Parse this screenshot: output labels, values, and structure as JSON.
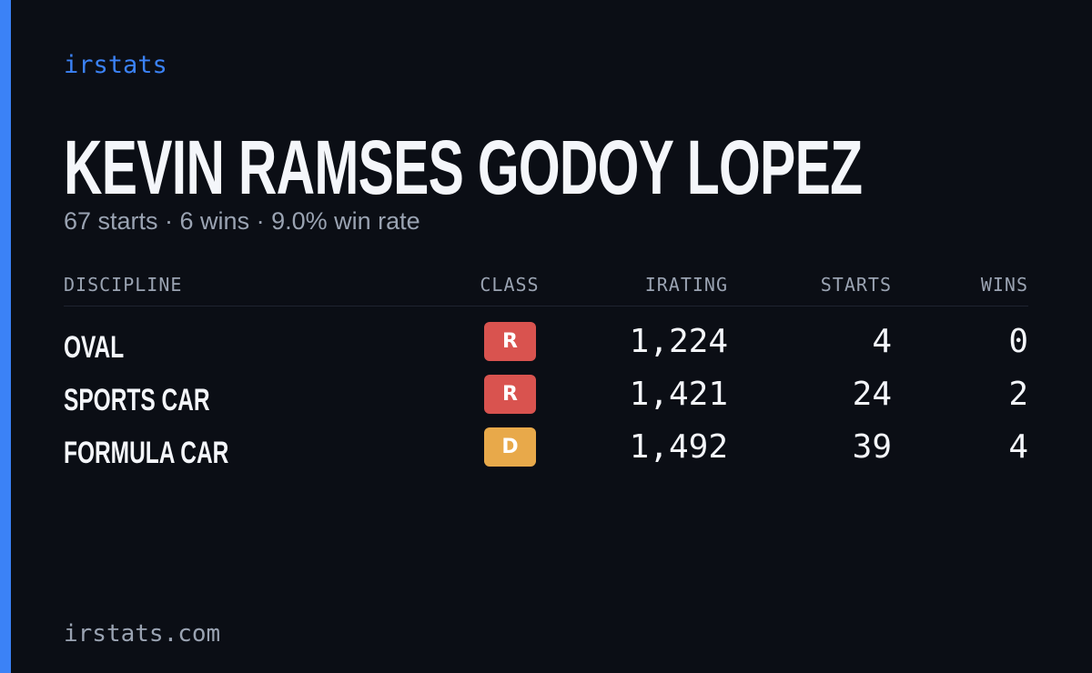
{
  "brand": "irstats",
  "title": "KEVIN RAMSES GODOY LOPEZ",
  "subtitle": "67 starts · 6 wins · 9.0% win rate",
  "table": {
    "columns": [
      "DISCIPLINE",
      "CLASS",
      "IRATING",
      "STARTS",
      "WINS"
    ],
    "rows": [
      {
        "discipline": "OVAL",
        "class": "R",
        "class_color": "#d9534f",
        "irating": "1,224",
        "starts": 4,
        "wins": 0
      },
      {
        "discipline": "SPORTS CAR",
        "class": "R",
        "class_color": "#d9534f",
        "irating": "1,421",
        "starts": 24,
        "wins": 2
      },
      {
        "discipline": "FORMULA CAR",
        "class": "D",
        "class_color": "#e8a94a",
        "irating": "1,492",
        "starts": 39,
        "wins": 4
      }
    ]
  },
  "footer": "irstats.com"
}
